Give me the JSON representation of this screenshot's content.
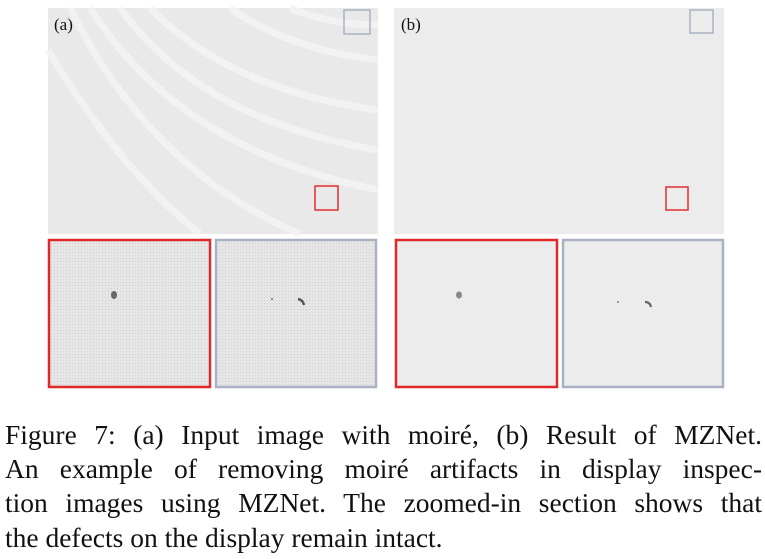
{
  "figure": {
    "panels": [
      {
        "label": "(a)"
      },
      {
        "label": "(b)"
      }
    ],
    "caption": {
      "lines": [
        "Figure 7: (a) Input image with moiré, (b) Result of MZNet.",
        "An example of removing moiré artifacts in display inspec-",
        "tion images using MZNet. The zoomed-in section shows that",
        "the defects on the display remain intact."
      ]
    }
  }
}
